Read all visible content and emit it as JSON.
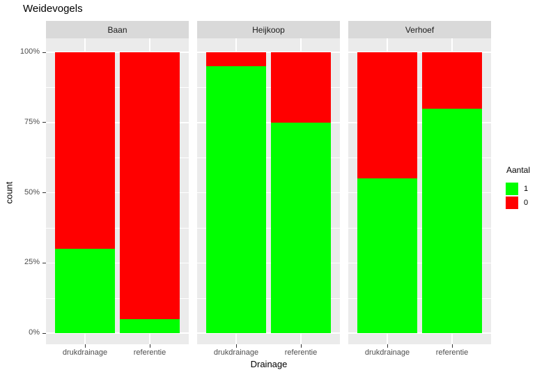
{
  "title": "Weidevogels",
  "y_axis": {
    "label": "count",
    "tick_labels": [
      "0%",
      "25%",
      "50%",
      "75%",
      "100%"
    ]
  },
  "x_axis": {
    "label": "Drainage",
    "categories": [
      "drukdrainage",
      "referentie"
    ]
  },
  "legend": {
    "title": "Aantal",
    "items": [
      {
        "label": "1",
        "color": "#00ff00"
      },
      {
        "label": "0",
        "color": "#ff0000"
      }
    ]
  },
  "theme": {
    "panel_bg": "#ebebeb",
    "strip_bg": "#d9d9d9",
    "grid_color": "#ffffff",
    "tick_label_color": "#4d4d4d",
    "green": "#00ff00",
    "red": "#ff0000"
  },
  "chart_data": {
    "type": "bar",
    "variant": "stacked-percent-fill",
    "title": "Weidevogels",
    "xlabel": "Drainage",
    "ylabel": "count",
    "ylim": [
      0,
      1
    ],
    "y_tick_labels": [
      "0%",
      "25%",
      "50%",
      "75%",
      "100%"
    ],
    "grid": true,
    "legend_title": "Aantal",
    "legend_position": "right",
    "categories": [
      "drukdrainage",
      "referentie"
    ],
    "series_names": [
      "1",
      "0"
    ],
    "series_colors": [
      "#00ff00",
      "#ff0000"
    ],
    "facets": [
      {
        "label": "Baan",
        "fraction_1": [
          0.3,
          0.05
        ],
        "fraction_0": [
          0.7,
          0.95
        ]
      },
      {
        "label": "Heijkoop",
        "fraction_1": [
          0.95,
          0.75
        ],
        "fraction_0": [
          0.05,
          0.25
        ]
      },
      {
        "label": "Verhoef",
        "fraction_1": [
          0.55,
          0.8
        ],
        "fraction_0": [
          0.45,
          0.2
        ]
      }
    ]
  }
}
